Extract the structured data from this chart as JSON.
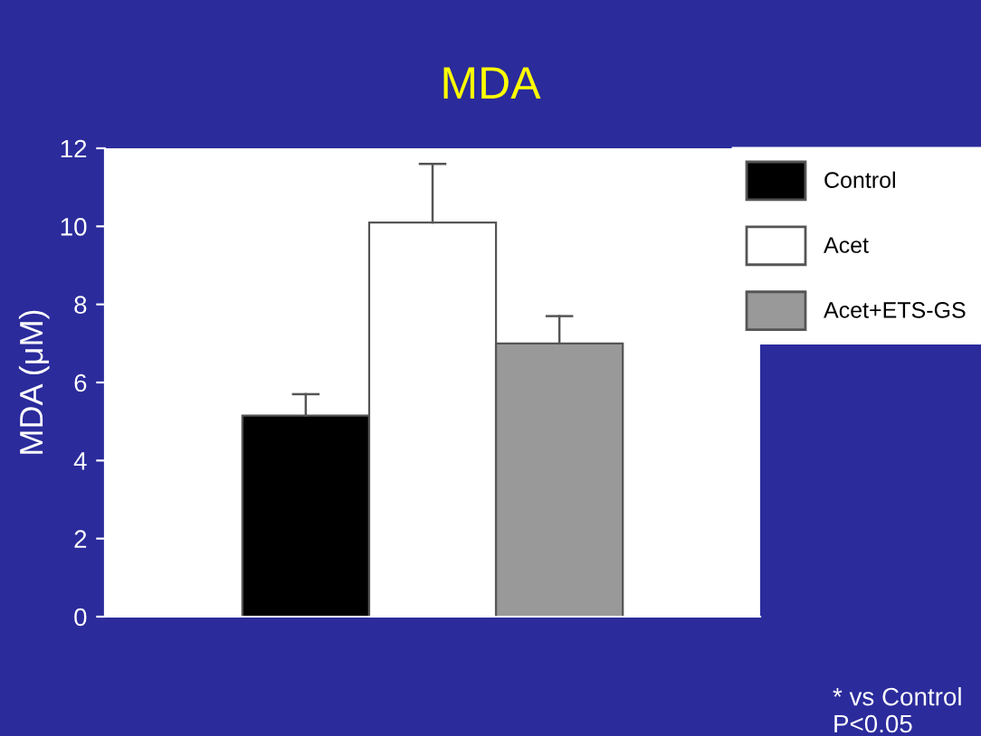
{
  "chart_data": {
    "type": "bar",
    "title": "MDA",
    "ylabel": "MDA (μM)",
    "categories": [
      null
    ],
    "series": [
      {
        "name": "Control",
        "color": "#000000",
        "values": [
          5.15
        ],
        "errors": [
          [
            5.15,
            5.7
          ]
        ]
      },
      {
        "name": "Acet",
        "color": "#ffffff",
        "values": [
          10.1
        ],
        "errors": [
          [
            10.1,
            11.6
          ]
        ]
      },
      {
        "name": "Acet+ETS-GS",
        "color": "#999999",
        "values": [
          7.0
        ],
        "errors": [
          [
            7.0,
            7.7
          ]
        ]
      }
    ],
    "ylim": [
      0,
      12
    ],
    "yticks": [
      0,
      2,
      4,
      6,
      8,
      10,
      12
    ],
    "grid": false,
    "legend": "top right",
    "annotations": [
      "* vs Control\nP<0.05"
    ]
  }
}
